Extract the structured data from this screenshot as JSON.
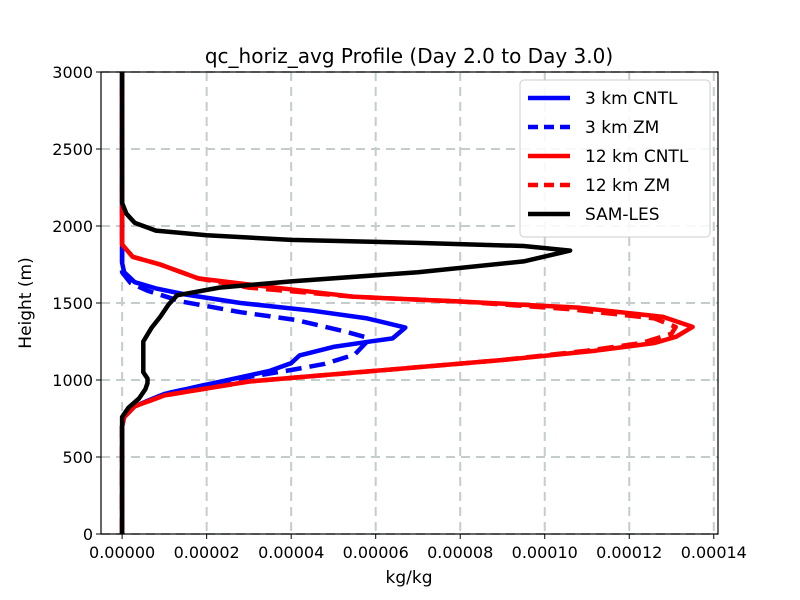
{
  "chart_data": {
    "type": "line",
    "title": "qc_horiz_avg Profile (Day 2.0 to Day 3.0)",
    "xlabel": "kg/kg",
    "ylabel": "Height (m)",
    "xlim": [
      -5e-06,
      0.000141
    ],
    "ylim": [
      0,
      3000
    ],
    "xticks": [
      0,
      2e-05,
      4e-05,
      6e-05,
      8e-05,
      0.0001,
      0.00012,
      0.00014
    ],
    "xtick_labels": [
      "0.00000",
      "0.00002",
      "0.00004",
      "0.00006",
      "0.00008",
      "0.00010",
      "0.00012",
      "0.00014"
    ],
    "yticks": [
      0,
      500,
      1000,
      1500,
      2000,
      2500,
      3000
    ],
    "ytick_labels": [
      "0",
      "500",
      "1000",
      "1500",
      "2000",
      "2500",
      "3000"
    ],
    "grid": true,
    "legend_position": "top-right",
    "series": [
      {
        "name": "3 km CNTL",
        "color": "#0000ff",
        "style": "solid",
        "points": [
          [
            0,
            0
          ],
          [
            0,
            700
          ],
          [
            5e-07,
            760
          ],
          [
            3e-06,
            830
          ],
          [
            1e-05,
            910
          ],
          [
            2e-05,
            970
          ],
          [
            3e-05,
            1030
          ],
          [
            3.5e-05,
            1060
          ],
          [
            4e-05,
            1110
          ],
          [
            4.2e-05,
            1160
          ],
          [
            5e-05,
            1215
          ],
          [
            6e-05,
            1255
          ],
          [
            6.4e-05,
            1270
          ],
          [
            6.7e-05,
            1340
          ],
          [
            5.8e-05,
            1400
          ],
          [
            4.5e-05,
            1450
          ],
          [
            2.8e-05,
            1500
          ],
          [
            1.5e-05,
            1555
          ],
          [
            8e-06,
            1595
          ],
          [
            3e-06,
            1635
          ],
          [
            5e-07,
            1700
          ],
          [
            0,
            1760
          ],
          [
            0,
            1880
          ],
          [
            0,
            3000
          ]
        ]
      },
      {
        "name": "3 km ZM",
        "color": "#0000ff",
        "style": "dashed",
        "points": [
          [
            0,
            0
          ],
          [
            0,
            700
          ],
          [
            5e-07,
            760
          ],
          [
            3e-06,
            830
          ],
          [
            1e-05,
            910
          ],
          [
            2e-05,
            970
          ],
          [
            3e-05,
            1020
          ],
          [
            4e-05,
            1065
          ],
          [
            4.8e-05,
            1105
          ],
          [
            5.5e-05,
            1165
          ],
          [
            5.8e-05,
            1250
          ],
          [
            5.8e-05,
            1275
          ],
          [
            5.2e-05,
            1320
          ],
          [
            4.1e-05,
            1390
          ],
          [
            2.8e-05,
            1440
          ],
          [
            1.4e-05,
            1510
          ],
          [
            6e-06,
            1580
          ],
          [
            2e-06,
            1630
          ],
          [
            0,
            1700
          ],
          [
            0,
            3000
          ]
        ]
      },
      {
        "name": "12 km CNTL",
        "color": "#ff0000",
        "style": "solid",
        "points": [
          [
            0,
            0
          ],
          [
            0,
            700
          ],
          [
            5e-07,
            760
          ],
          [
            3e-06,
            830
          ],
          [
            1e-05,
            900
          ],
          [
            3e-05,
            990
          ],
          [
            6e-05,
            1060
          ],
          [
            9e-05,
            1130
          ],
          [
            0.000112,
            1190
          ],
          [
            0.000126,
            1240
          ],
          [
            0.000131,
            1280
          ],
          [
            0.000135,
            1345
          ],
          [
            0.000128,
            1410
          ],
          [
            0.000108,
            1470
          ],
          [
            8e-05,
            1510
          ],
          [
            5.5e-05,
            1540
          ],
          [
            3e-05,
            1620
          ],
          [
            1.8e-05,
            1660
          ],
          [
            9e-06,
            1750
          ],
          [
            2.5e-06,
            1800
          ],
          [
            0,
            1880
          ],
          [
            0,
            2100
          ],
          [
            0,
            3000
          ]
        ]
      },
      {
        "name": "12 km ZM",
        "color": "#ff0000",
        "style": "dashed",
        "points": [
          [
            0,
            0
          ],
          [
            0,
            700
          ],
          [
            5e-07,
            760
          ],
          [
            3e-06,
            830
          ],
          [
            1e-05,
            900
          ],
          [
            3e-05,
            990
          ],
          [
            6e-05,
            1060
          ],
          [
            9e-05,
            1130
          ],
          [
            0.00011,
            1190
          ],
          [
            0.000123,
            1240
          ],
          [
            0.00013,
            1300
          ],
          [
            0.000131,
            1345
          ],
          [
            0.000126,
            1400
          ],
          [
            0.000106,
            1460
          ],
          [
            8e-05,
            1510
          ],
          [
            5.5e-05,
            1540
          ],
          [
            3e-05,
            1600
          ],
          [
            1.8e-05,
            1660
          ],
          [
            9e-06,
            1750
          ],
          [
            2.5e-06,
            1800
          ],
          [
            0,
            1880
          ],
          [
            0,
            3000
          ]
        ]
      },
      {
        "name": "SAM-LES",
        "color": "#000000",
        "style": "solid",
        "points": [
          [
            0,
            0
          ],
          [
            0,
            760
          ],
          [
            1.5e-06,
            820
          ],
          [
            4e-06,
            880
          ],
          [
            5.5e-06,
            940
          ],
          [
            6e-06,
            980
          ],
          [
            6e-06,
            1010
          ],
          [
            5e-06,
            1050
          ],
          [
            5e-06,
            1150
          ],
          [
            5e-06,
            1250
          ],
          [
            7e-06,
            1340
          ],
          [
            9e-06,
            1410
          ],
          [
            1.1e-05,
            1490
          ],
          [
            1.3e-05,
            1550
          ],
          [
            2.3e-05,
            1600
          ],
          [
            4e-05,
            1640
          ],
          [
            7e-05,
            1700
          ],
          [
            9.5e-05,
            1770
          ],
          [
            0.000106,
            1840
          ],
          [
            9.5e-05,
            1870
          ],
          [
            7e-05,
            1890
          ],
          [
            4e-05,
            1910
          ],
          [
            2e-05,
            1940
          ],
          [
            8e-06,
            1970
          ],
          [
            3e-06,
            2020
          ],
          [
            1e-06,
            2080
          ],
          [
            0,
            2150
          ],
          [
            0,
            3000
          ]
        ]
      }
    ]
  }
}
